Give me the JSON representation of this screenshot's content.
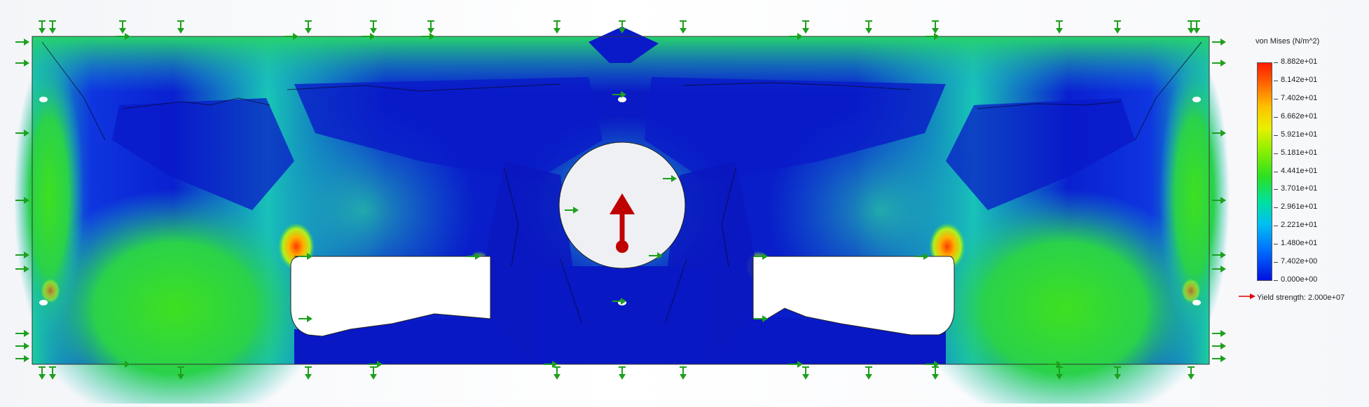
{
  "legend": {
    "title": "von Mises (N/m^2)",
    "ticks": [
      "8.882e+01",
      "8.142e+01",
      "7.402e+01",
      "6.662e+01",
      "5.921e+01",
      "5.181e+01",
      "4.441e+01",
      "3.701e+01",
      "2.961e+01",
      "2.221e+01",
      "1.480e+01",
      "7.402e+00",
      "0.000e+00"
    ],
    "yield_label": "Yield strength: 2.000e+07"
  },
  "colors": {
    "low": "#0a1fd6",
    "mid": "#1fd23a",
    "high": "#ff2a00",
    "load_arrow": "#c00000",
    "fixture": "#1ea01e",
    "yield_arrow": "#e00000"
  }
}
